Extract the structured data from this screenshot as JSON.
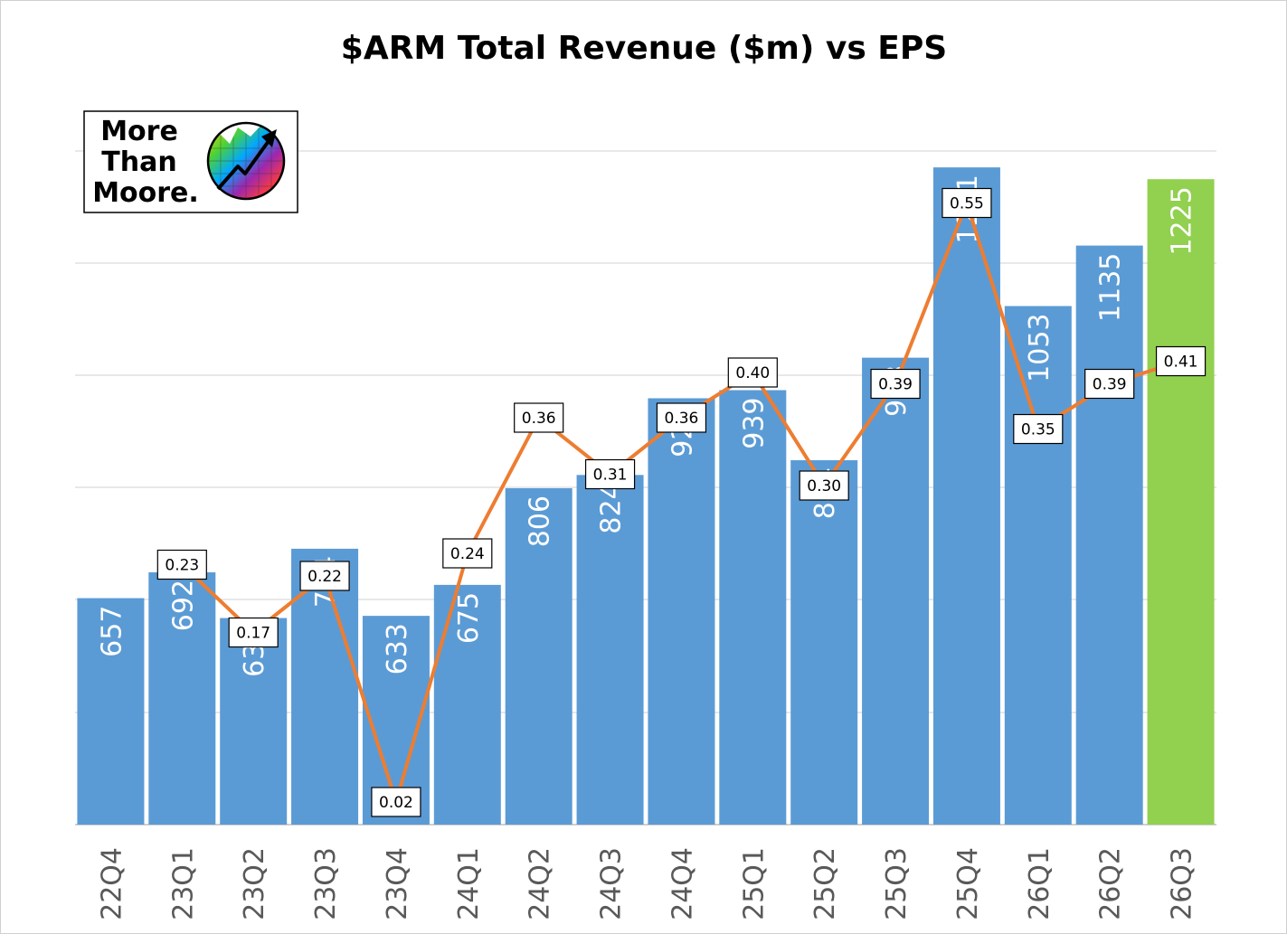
{
  "chart_data": {
    "type": "bar",
    "title": "$ARM Total Revenue ($m) vs EPS",
    "categories": [
      "22Q4",
      "23Q1",
      "23Q2",
      "23Q3",
      "23Q4",
      "24Q1",
      "24Q2",
      "24Q3",
      "24Q4",
      "25Q1",
      "25Q2",
      "25Q3",
      "25Q4",
      "26Q1",
      "26Q2",
      "26Q3"
    ],
    "series": [
      {
        "type": "bar",
        "values": [
          657,
          692,
          630,
          724,
          633,
          675,
          806,
          824,
          928,
          939,
          844,
          983,
          1241,
          1053,
          1135,
          1225
        ],
        "color": "#5b9bd5",
        "highlight_last_color": "#92d050"
      },
      {
        "type": "line",
        "values": [
          null,
          0.23,
          0.17,
          0.22,
          0.02,
          0.24,
          0.36,
          0.31,
          0.36,
          0.4,
          0.3,
          0.39,
          0.55,
          0.35,
          0.39,
          0.41
        ],
        "labels": [
          "",
          "0.23",
          "0.17",
          "0.22",
          "0.02",
          "0.24",
          "0.36",
          "0.31",
          "0.36",
          "0.40",
          "0.30",
          "0.39",
          "0.55",
          "0.35",
          "0.39",
          "0.41"
        ],
        "color": "#ed7d31"
      }
    ],
    "revenue_axis_range": [
      350,
      1300
    ],
    "eps_axis_range": [
      0,
      0.8
    ],
    "gridlines": true,
    "legend": "none"
  },
  "logo": {
    "lines": [
      "More",
      "Than",
      "Moore."
    ],
    "icon": "rainbow-chart-globe-icon"
  }
}
